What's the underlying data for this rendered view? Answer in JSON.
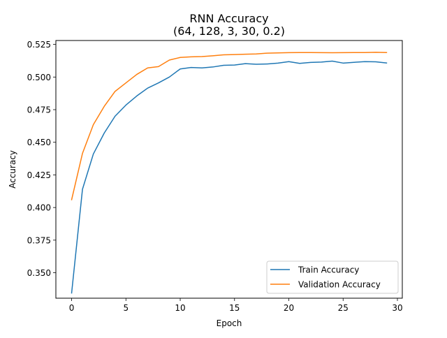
{
  "chart_data": {
    "type": "line",
    "title": "RNN Accuracy",
    "subtitle": "(64, 128, 3, 30, 0.2)",
    "xlabel": "Epoch",
    "ylabel": "Accuracy",
    "xlim": [
      -1.45,
      30.45
    ],
    "ylim": [
      0.3305,
      0.528
    ],
    "xticks": [
      0,
      5,
      10,
      15,
      20,
      25,
      30
    ],
    "xtick_labels": [
      "0",
      "5",
      "10",
      "15",
      "20",
      "25",
      "30"
    ],
    "yticks": [
      0.35,
      0.375,
      0.4,
      0.425,
      0.45,
      0.475,
      0.5,
      0.525
    ],
    "ytick_labels": [
      "0.350",
      "0.375",
      "0.400",
      "0.425",
      "0.450",
      "0.475",
      "0.500",
      "0.525"
    ],
    "grid": false,
    "legend_position": "lower right",
    "x": [
      0,
      1,
      2,
      3,
      4,
      5,
      6,
      7,
      8,
      9,
      10,
      11,
      12,
      13,
      14,
      15,
      16,
      17,
      18,
      19,
      20,
      21,
      22,
      23,
      24,
      25,
      26,
      27,
      28,
      29
    ],
    "series": [
      {
        "name": "Train Accuracy",
        "color": "#1f77b4",
        "values": [
          0.3345,
          0.414,
          0.441,
          0.457,
          0.47,
          0.4785,
          0.4855,
          0.4915,
          0.4955,
          0.5,
          0.5062,
          0.5073,
          0.507,
          0.5077,
          0.509,
          0.5092,
          0.5103,
          0.5098,
          0.51,
          0.5107,
          0.5118,
          0.5105,
          0.5112,
          0.5115,
          0.5122,
          0.5107,
          0.5113,
          0.5118,
          0.5117,
          0.5108
        ]
      },
      {
        "name": "Validation Accuracy",
        "color": "#ff7f0e",
        "values": [
          0.406,
          0.4415,
          0.4635,
          0.4775,
          0.489,
          0.4955,
          0.502,
          0.507,
          0.508,
          0.513,
          0.515,
          0.5155,
          0.5157,
          0.5163,
          0.517,
          0.5172,
          0.5175,
          0.5177,
          0.5183,
          0.5185,
          0.5187,
          0.5188,
          0.5188,
          0.5187,
          0.5186,
          0.5187,
          0.5188,
          0.5188,
          0.519,
          0.5188
        ]
      }
    ]
  }
}
